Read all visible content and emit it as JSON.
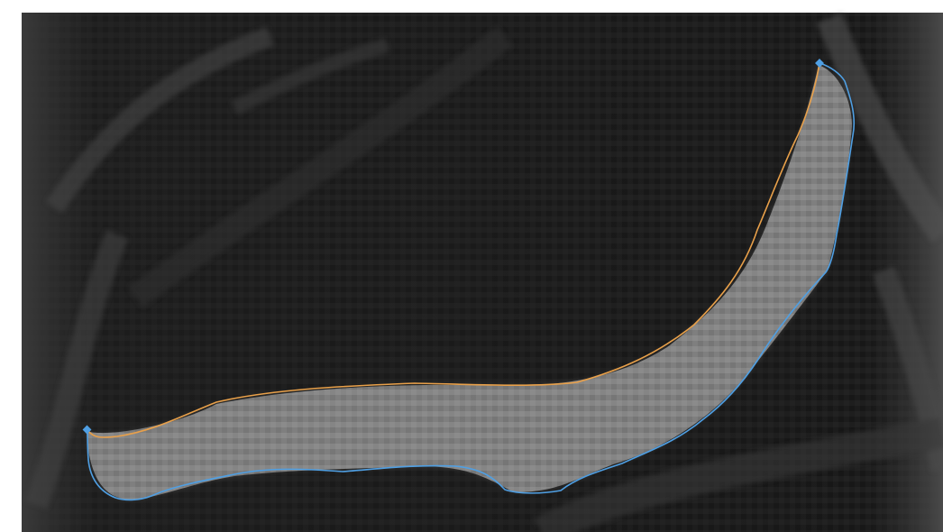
{
  "image": {
    "kind": "grayscale-scan",
    "background_color": "#ffffff",
    "tissue_dark": "#111111",
    "tissue_mid": "#3a3a3a",
    "band_color": "#8a8a8a"
  },
  "contours": [
    {
      "name": "inner-contour",
      "color": "#e8a04a"
    },
    {
      "name": "outer-contour",
      "color": "#4f9fe3"
    }
  ],
  "handles": [
    {
      "name": "left-handle",
      "color": "#4f9fe3"
    },
    {
      "name": "right-handle",
      "color": "#4f9fe3"
    }
  ]
}
